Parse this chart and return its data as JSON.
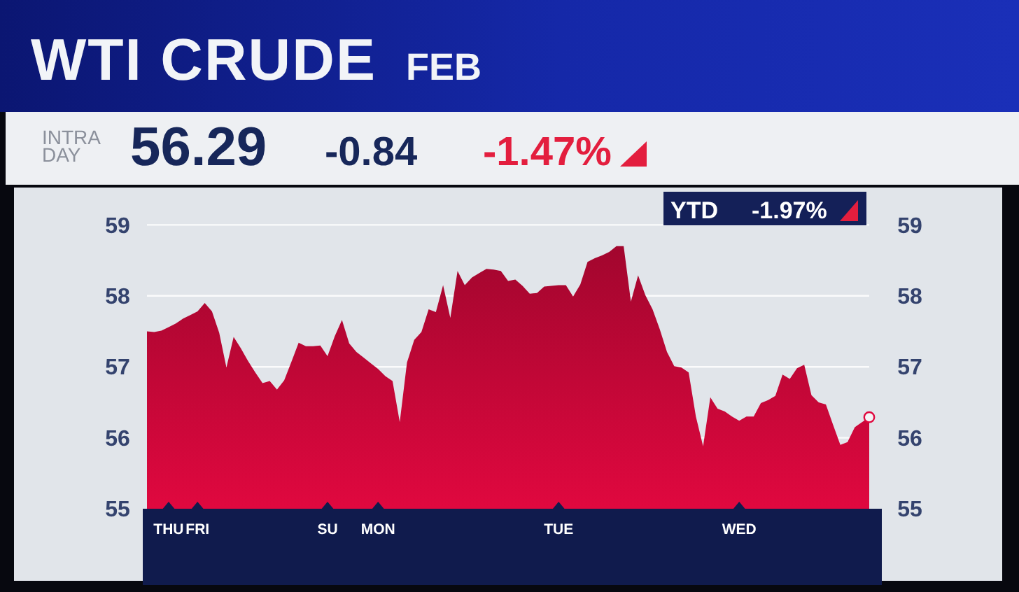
{
  "chart_data": {
    "type": "area",
    "title": "WTI CRUDE",
    "subtitle": "FEB",
    "annotations": [
      "INTRA DAY",
      "56.29",
      "-0.84",
      "-1.47%",
      "YTD",
      "-1.97%"
    ],
    "categories": [
      null,
      null,
      null,
      "THU",
      null,
      null,
      null,
      "FRI",
      null,
      null,
      null,
      null,
      null,
      null,
      null,
      null,
      null,
      null,
      null,
      null,
      null,
      null,
      null,
      null,
      null,
      "SU",
      null,
      null,
      null,
      null,
      null,
      null,
      "MON",
      null,
      null,
      null,
      null,
      null,
      null,
      null,
      null,
      null,
      null,
      null,
      null,
      null,
      null,
      null,
      null,
      null,
      null,
      null,
      null,
      null,
      null,
      null,
      null,
      "TUE",
      null,
      null,
      null,
      null,
      null,
      null,
      null,
      null,
      null,
      null,
      null,
      null,
      null,
      null,
      null,
      null,
      null,
      null,
      null,
      null,
      null,
      null,
      null,
      null,
      "WED",
      null,
      null,
      null,
      null,
      null,
      null,
      null,
      null,
      null,
      null,
      null,
      null,
      null,
      null,
      null,
      null,
      null,
      null
    ],
    "ylim": [
      55,
      59
    ],
    "yticks": [
      55,
      56,
      57,
      58,
      59
    ],
    "y2lim": [
      55,
      59
    ],
    "y2ticks": [
      55,
      56,
      57,
      58,
      59
    ],
    "grid": "y",
    "series": [
      {
        "color": "#e0083f",
        "values": [
          57.5,
          57.49,
          57.51,
          57.56,
          57.61,
          57.68,
          57.73,
          57.78,
          57.9,
          57.78,
          57.48,
          56.99,
          57.42,
          57.26,
          57.08,
          56.92,
          56.77,
          56.8,
          56.68,
          56.81,
          57.07,
          57.34,
          57.29,
          57.29,
          57.3,
          57.15,
          57.43,
          57.66,
          57.33,
          57.21,
          57.13,
          57.05,
          56.97,
          56.87,
          56.8,
          56.22,
          57.06,
          57.38,
          57.49,
          57.81,
          57.77,
          58.15,
          57.69,
          58.35,
          58.15,
          58.26,
          58.32,
          58.38,
          58.37,
          58.35,
          58.21,
          58.23,
          58.14,
          58.03,
          58.04,
          58.13,
          58.14,
          58.15,
          58.15,
          57.99,
          58.16,
          58.48,
          58.53,
          58.57,
          58.62,
          58.7,
          58.7,
          57.92,
          58.29,
          58.01,
          57.81,
          57.53,
          57.21,
          57.01,
          56.99,
          56.92,
          56.3,
          55.88,
          56.57,
          56.41,
          56.37,
          56.3,
          56.24,
          56.3,
          56.3,
          56.49,
          56.53,
          56.59,
          56.89,
          56.83,
          56.98,
          57.03,
          56.6,
          56.5,
          56.47,
          56.18,
          55.9,
          55.94,
          56.15,
          56.22,
          56.29
        ]
      },
      {
        "type": "scatter",
        "color": "#f4f4f6",
        "values": [
          null,
          null,
          null,
          null,
          null,
          null,
          null,
          null,
          null,
          null,
          null,
          null,
          null,
          null,
          null,
          null,
          null,
          null,
          null,
          null,
          null,
          null,
          null,
          null,
          null,
          null,
          null,
          null,
          null,
          null,
          null,
          null,
          null,
          null,
          null,
          null,
          null,
          null,
          null,
          null,
          null,
          null,
          null,
          null,
          null,
          null,
          null,
          null,
          null,
          null,
          null,
          null,
          null,
          null,
          null,
          null,
          null,
          null,
          null,
          null,
          null,
          null,
          null,
          null,
          null,
          null,
          null,
          null,
          null,
          null,
          null,
          null,
          null,
          null,
          null,
          null,
          null,
          null,
          null,
          null,
          null,
          null,
          null,
          null,
          null,
          null,
          null,
          null,
          null,
          null,
          null,
          null,
          null,
          null,
          null,
          null,
          null,
          null,
          null,
          null,
          56.29
        ]
      }
    ]
  }
}
